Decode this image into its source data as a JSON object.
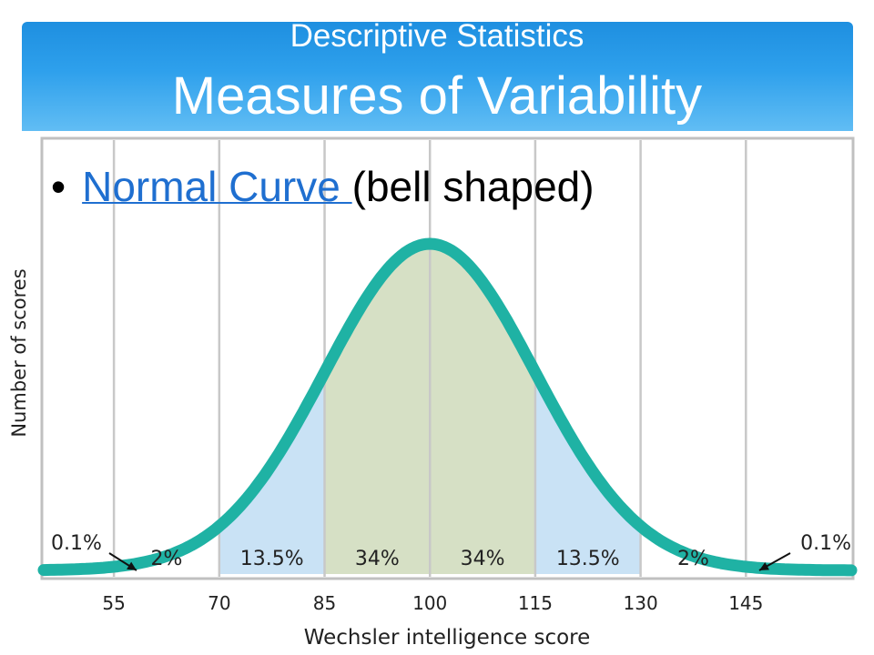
{
  "slide": {
    "subtitle": "Descriptive Statistics",
    "title": "Measures of Variability",
    "bullet": {
      "link_text": "Normal Curve ",
      "rest_text": "(bell shaped)"
    }
  },
  "colors": {
    "header_top": "#1e8fe0",
    "header_bottom": "#61bdf4",
    "curve": "#1fb2a4",
    "band_inner": "#d6e0c5",
    "band_outer": "#c9e2f5",
    "gridline": "#c8c8c8",
    "link": "#1f6fd0"
  },
  "chart_data": {
    "type": "area",
    "distribution": "normal",
    "mean": 100,
    "sd": 15,
    "xlabel": "Wechsler intelligence score",
    "ylabel": "Number of scores",
    "x_ticks": [
      55,
      70,
      85,
      100,
      115,
      130,
      145
    ],
    "xlim": [
      45,
      160
    ],
    "grid": true,
    "bands": [
      {
        "from": 70,
        "to": 85,
        "fill": "outer"
      },
      {
        "from": 85,
        "to": 100,
        "fill": "inner"
      },
      {
        "from": 100,
        "to": 115,
        "fill": "inner"
      },
      {
        "from": 115,
        "to": 130,
        "fill": "outer"
      }
    ],
    "region_labels": [
      {
        "x": 62.5,
        "text": "2%"
      },
      {
        "x": 77.5,
        "text": "13.5%"
      },
      {
        "x": 92.5,
        "text": "34%"
      },
      {
        "x": 107.5,
        "text": "34%"
      },
      {
        "x": 122.5,
        "text": "13.5%"
      },
      {
        "x": 137.5,
        "text": "2%"
      }
    ],
    "tail_annotations": [
      {
        "side": "left",
        "text": "0.1%"
      },
      {
        "side": "right",
        "text": "0.1%"
      }
    ]
  }
}
